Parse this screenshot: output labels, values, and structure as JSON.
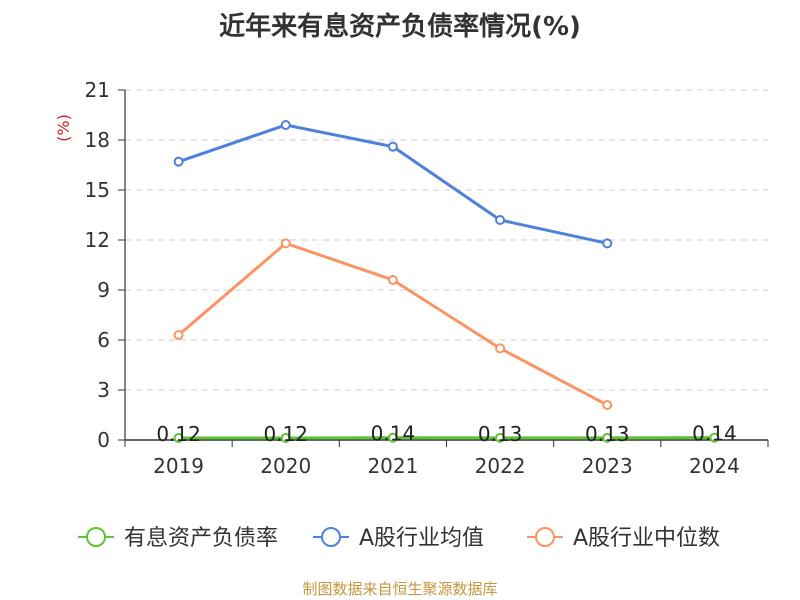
{
  "chart_data": {
    "type": "line",
    "title": "近年来有息资产负债率情况(%)",
    "ylabel": "(%)",
    "categories": [
      "2019",
      "2020",
      "2021",
      "2022",
      "2023",
      "2024"
    ],
    "y_ticks": [
      "0",
      "3",
      "6",
      "9",
      "12",
      "15",
      "18",
      "21"
    ],
    "ylim": [
      0,
      21
    ],
    "grid": true,
    "legend_position": "bottom",
    "series": [
      {
        "name": "有息资产负债率",
        "color": "#5cc434",
        "values": [
          0.12,
          0.12,
          0.14,
          0.13,
          0.13,
          0.14
        ],
        "data_labels": [
          "0.12",
          "0.12",
          "0.14",
          "0.13",
          "0.13",
          "0.14"
        ]
      },
      {
        "name": "A股行业均值",
        "color": "#4e80dc",
        "values": [
          16.7,
          18.9,
          17.6,
          13.2,
          11.8,
          null
        ]
      },
      {
        "name": "A股行业中位数",
        "color": "#f99563",
        "values": [
          6.3,
          11.8,
          9.6,
          5.5,
          2.1,
          null
        ]
      }
    ]
  },
  "source": "制图数据来自恒生聚源数据库"
}
